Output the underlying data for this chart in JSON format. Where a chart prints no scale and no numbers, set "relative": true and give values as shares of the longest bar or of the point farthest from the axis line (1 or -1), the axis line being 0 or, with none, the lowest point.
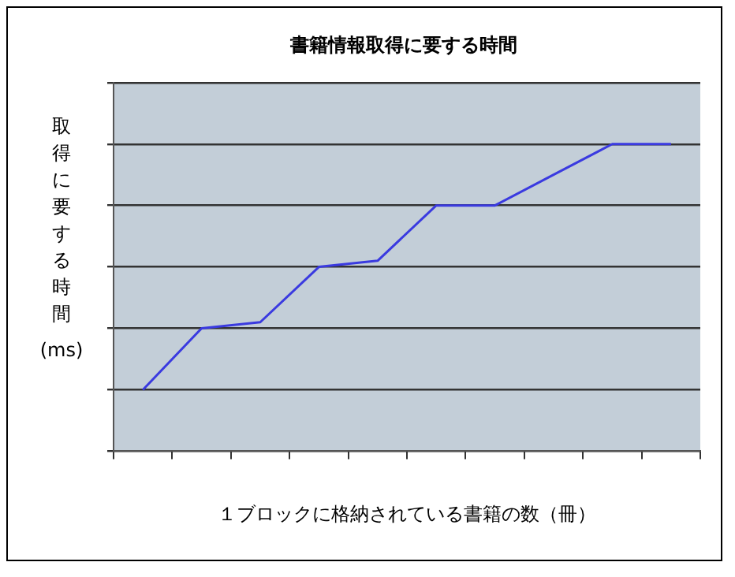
{
  "chart_data": {
    "type": "line",
    "title": "書籍情報取得に要する時間",
    "xlabel": "１ブロックに格納されている書籍の数（冊）",
    "ylabel": "取得に要する時間(ms)",
    "categories": [
      null,
      null,
      null,
      null,
      null,
      null,
      null,
      null,
      null,
      null
    ],
    "relative": true,
    "grid": "y",
    "legend": false,
    "marker": "none",
    "line_style": "solid",
    "series": [
      {
        "color": "#3a3ae0",
        "values": [
          0.2,
          0.4,
          0.42,
          0.6,
          0.62,
          0.8,
          0.8,
          0.9,
          1,
          1
        ]
      }
    ]
  }
}
